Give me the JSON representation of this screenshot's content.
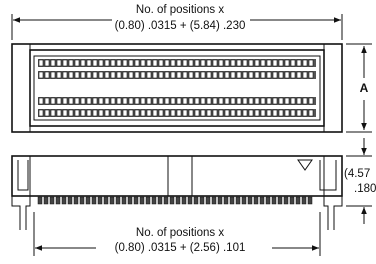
{
  "top_dimension": {
    "label": "No. of positions x",
    "formula": "(0.80) .0315 + (5.84) .230"
  },
  "side_dimension_a": "A",
  "height_dimension": {
    "metric": "(4.57",
    "inch": ".180"
  },
  "bottom_dimension": {
    "label": "No. of positions x",
    "formula": "(0.80) .0315 + (2.56) .101"
  }
}
